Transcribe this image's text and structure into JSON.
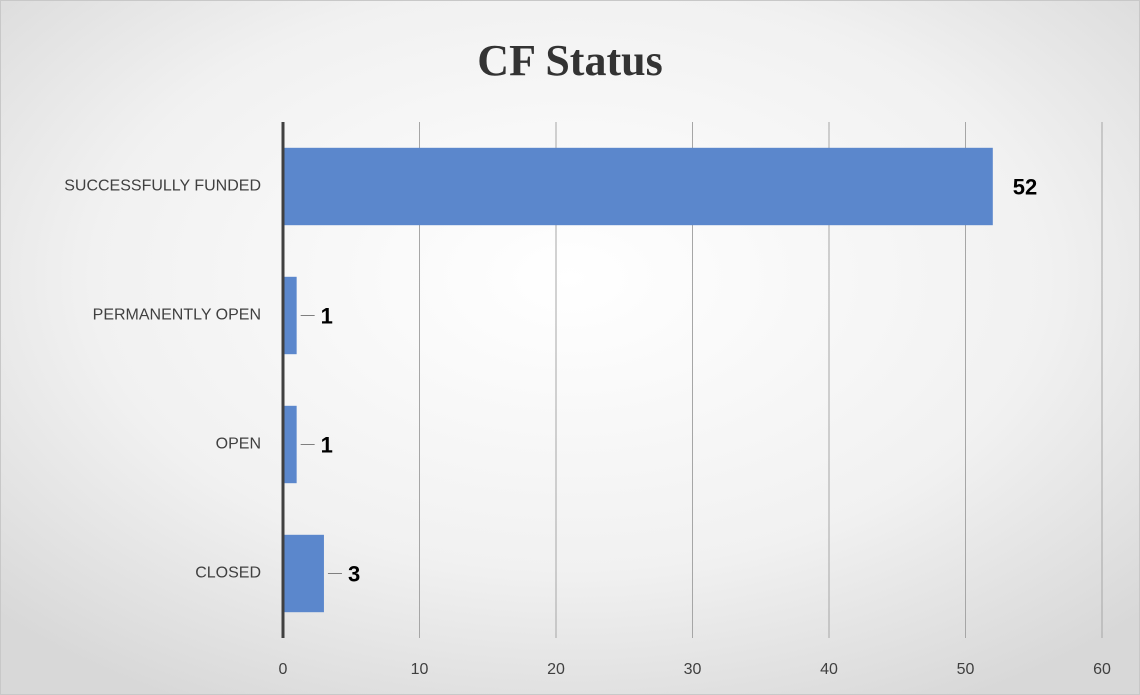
{
  "chart_data": {
    "type": "hbar",
    "title": "CF Status",
    "categories": [
      "SUCCESSFULLY FUNDED",
      "PERMANENTLY OPEN",
      "OPEN",
      "CLOSED"
    ],
    "values": [
      52,
      1,
      1,
      3
    ],
    "color": "#5b87cc",
    "xlim": [
      0,
      60
    ],
    "xticks": [
      0,
      10,
      20,
      30,
      40,
      50,
      60
    ],
    "grid": true
  }
}
